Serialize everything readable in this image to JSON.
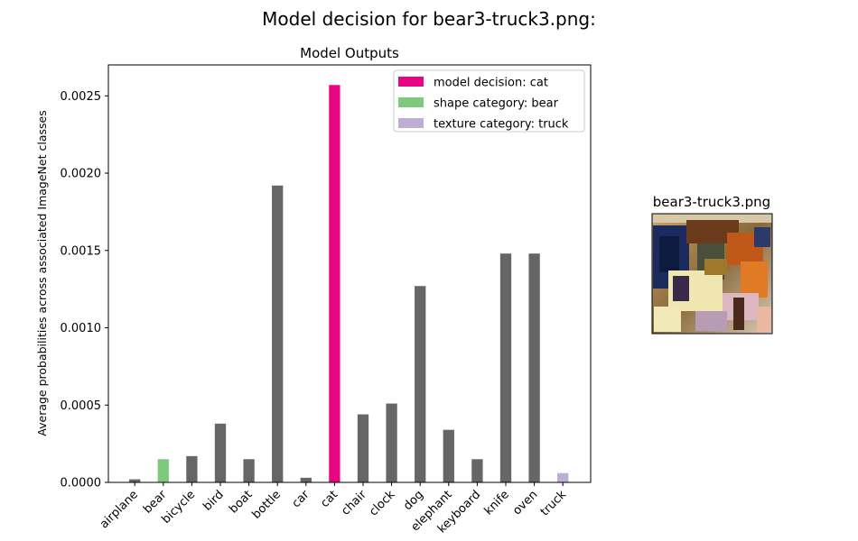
{
  "figure": {
    "suptitle": "Model decision for bear3-truck3.png:"
  },
  "chart_data": {
    "type": "bar",
    "title": "Model Outputs",
    "xlabel": "",
    "ylabel": "Average probabilities across associated ImageNet classes",
    "ylim": [
      0,
      0.0027
    ],
    "yticks": [
      "0.0000",
      "0.0005",
      "0.0010",
      "0.0015",
      "0.0020",
      "0.0025"
    ],
    "ytick_values": [
      0,
      0.0005,
      0.001,
      0.0015,
      0.002,
      0.0025
    ],
    "categories": [
      "airplane",
      "bear",
      "bicycle",
      "bird",
      "boat",
      "bottle",
      "car",
      "cat",
      "chair",
      "clock",
      "dog",
      "elephant",
      "keyboard",
      "knife",
      "oven",
      "truck"
    ],
    "values": [
      2e-05,
      0.00015,
      0.00017,
      0.00038,
      0.00015,
      0.00192,
      3e-05,
      0.00257,
      0.00044,
      0.00051,
      0.00127,
      0.00034,
      0.00015,
      0.00148,
      0.00148,
      6e-05
    ],
    "bar_roles": [
      "default",
      "shape",
      "default",
      "default",
      "default",
      "default",
      "default",
      "decision",
      "default",
      "default",
      "default",
      "default",
      "default",
      "default",
      "default",
      "texture"
    ],
    "colors": {
      "default": "#666666",
      "decision": "#e7067f",
      "shape": "#7fc97f",
      "texture": "#beaed4"
    },
    "grid": false,
    "legend_position": "top-right",
    "legend": [
      {
        "label": "model decision: cat",
        "role": "decision"
      },
      {
        "label": "shape category: bear",
        "role": "shape"
      },
      {
        "label": "texture category: truck",
        "role": "texture"
      }
    ]
  },
  "thumbnail": {
    "title": "bear3-truck3.png"
  }
}
